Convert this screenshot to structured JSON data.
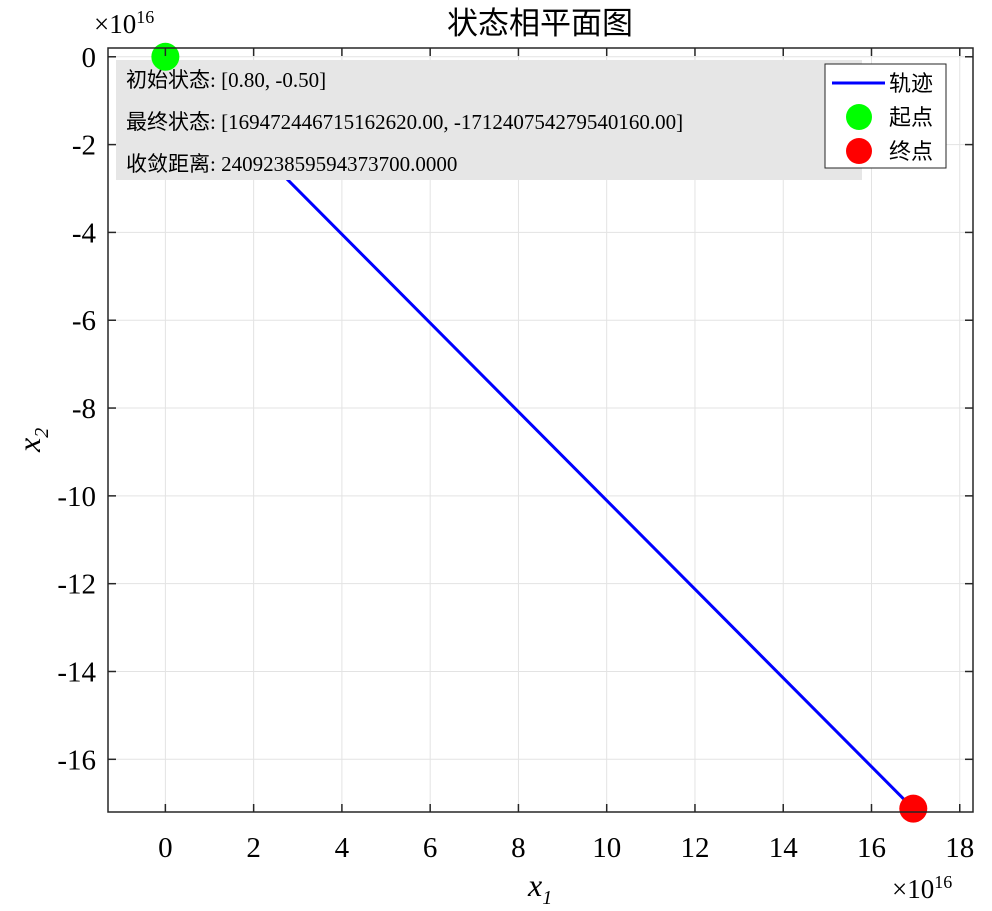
{
  "chart_data": {
    "type": "line",
    "title": "状态相平面图",
    "xlabel": "x",
    "xlabel_sub": "1",
    "ylabel": "x",
    "ylabel_sub": "2",
    "x_exponent_label": "×10",
    "x_exponent_power": "16",
    "y_exponent_label": "×10",
    "y_exponent_power": "16",
    "xlim": [
      -1.3,
      18.3
    ],
    "ylim": [
      -17.2,
      0.2
    ],
    "xticks": [
      0,
      2,
      4,
      6,
      8,
      10,
      12,
      14,
      16,
      18
    ],
    "yticks": [
      0,
      -2,
      -4,
      -6,
      -8,
      -10,
      -12,
      -14,
      -16
    ],
    "grid": true,
    "legend_position": "top-right",
    "series": [
      {
        "name": "轨迹",
        "color": "#0000ff",
        "x": [
          0.0,
          16.947
        ],
        "y": [
          0.0,
          -17.124
        ]
      }
    ],
    "markers": [
      {
        "name": "起点",
        "color": "#00ff00",
        "x": 0.0,
        "y": 0.0
      },
      {
        "name": "终点",
        "color": "#ff0000",
        "x": 16.947,
        "y": -17.124
      }
    ],
    "annotation": {
      "lines": [
        "初始状态: [0.80, -0.50]",
        "最终状态: [169472446715162620.00, -171240754279540160.00]",
        "收敛距离: 240923859594373700.0000"
      ],
      "background": "#e6e6e6"
    }
  }
}
